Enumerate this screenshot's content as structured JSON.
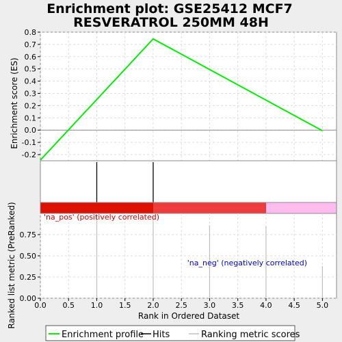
{
  "title_line1": "Enrichment plot: GSE25412 MCF7",
  "title_line2": "RESVERATROL 250MM 48H",
  "colors": {
    "profile": "#00ee00",
    "hits": "#000000",
    "metric": "#c0c0c0",
    "band_pos_strong": "#dd1100",
    "band_pos_mid": "#ee3c3c",
    "band_neg": "#ffbbee",
    "pos_text": "#cc0000",
    "neg_text": "#0000cc",
    "grid": "#dddddd"
  },
  "chart_data": [
    {
      "type": "line",
      "name": "enrichment-score",
      "ylabel": "Enrichment score (ES)",
      "xlim": [
        0,
        5.25
      ],
      "ylim": [
        -0.25,
        0.8
      ],
      "yticks": [
        -0.2,
        -0.1,
        0.0,
        0.1,
        0.2,
        0.3,
        0.4,
        0.5,
        0.6,
        0.7,
        0.8
      ],
      "ytick_labels": [
        "-0.2",
        "-0.1",
        "0.0",
        "0.1",
        "0.2",
        "0.3",
        "0.4",
        "0.5",
        "0.6",
        "0.7",
        "0.8"
      ],
      "grid": true,
      "series": [
        {
          "name": "Enrichment profile",
          "x": [
            0,
            2,
            5
          ],
          "y": [
            -0.245,
            0.745,
            -0.005
          ]
        }
      ]
    },
    {
      "type": "hits",
      "name": "hits",
      "x": [
        1,
        2
      ]
    },
    {
      "type": "bar",
      "name": "ranked-list-metric",
      "xlabel": "Rank in Ordered Dataset",
      "ylabel": "Ranked list metric (PreRanked)",
      "xlim": [
        0,
        5.25
      ],
      "ylim": [
        0,
        1.0
      ],
      "yticks": [
        0.0,
        0.25,
        0.5,
        0.75
      ],
      "ytick_labels": [
        "0.00",
        "0.25",
        "0.50",
        "0.75"
      ],
      "xticks": [
        0.0,
        0.5,
        1.0,
        1.5,
        2.0,
        2.5,
        3.0,
        3.5,
        4.0,
        4.5,
        5.0
      ],
      "xtick_labels": [
        "0.0",
        "0.5",
        "1.0",
        "1.5",
        "2.0",
        "2.5",
        "3.0",
        "3.5",
        "4.0",
        "4.5",
        "5.0"
      ],
      "grid": true,
      "x": [
        1,
        2,
        3,
        4,
        5
      ],
      "values": [
        0.99,
        0.97,
        0.86,
        0.85,
        0.38
      ],
      "pos_label": "'na_pos' (positively correlated)",
      "neg_label": "'na_neg' (negatively correlated)"
    }
  ],
  "legend": {
    "items": [
      {
        "label": "Enrichment profile"
      },
      {
        "label": "Hits"
      },
      {
        "label": "Ranking metric scores"
      }
    ]
  }
}
